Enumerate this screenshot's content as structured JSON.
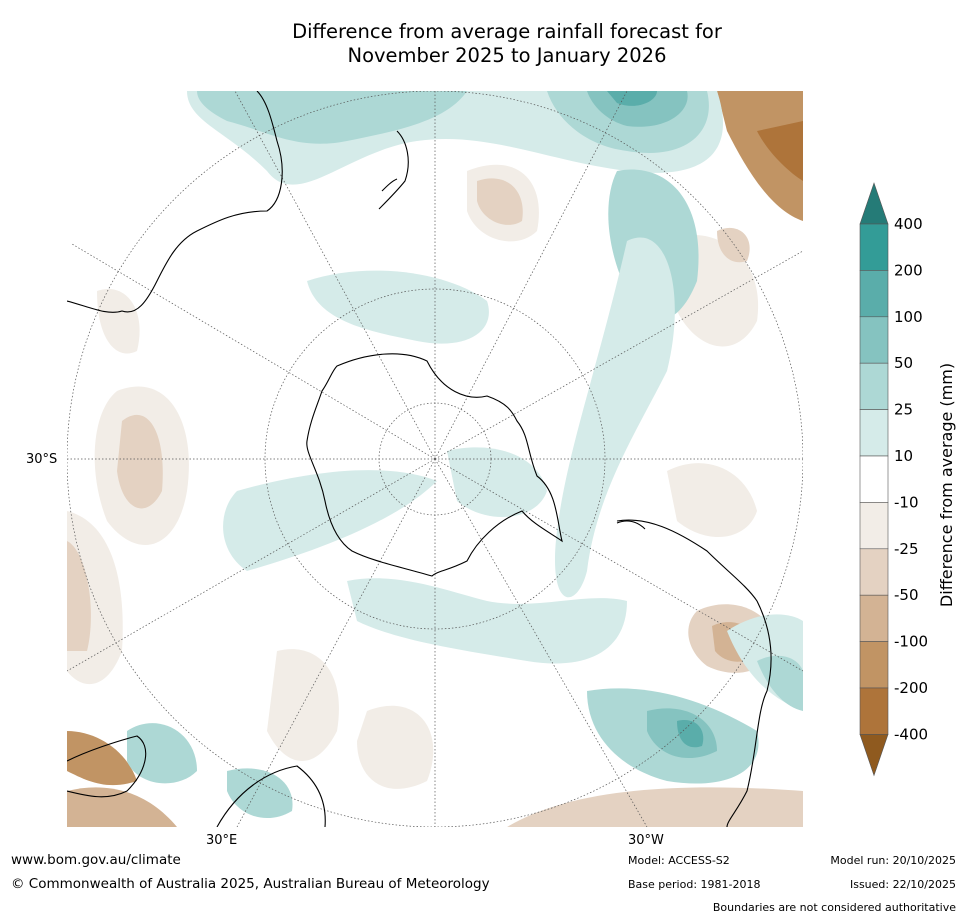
{
  "title": {
    "line1": "Difference from average rainfall forecast for",
    "line2": "November 2025 to January 2026"
  },
  "map": {
    "lat_label": "30°S",
    "lon_label_left": "30°E",
    "lon_label_right": "30°W"
  },
  "colorbar": {
    "label": "Difference from average (mm)",
    "ticks": [
      "400",
      "200",
      "100",
      "50",
      "25",
      "10",
      "-10",
      "-25",
      "-50",
      "-100",
      "-200",
      "-400"
    ],
    "colors": {
      "gt400": "#257b77",
      "200_400": "#339c97",
      "100_200": "#5aadaa",
      "50_100": "#85c3c0",
      "25_50": "#add8d5",
      "10_25": "#d5ebe9",
      "-10_10": "#ffffff",
      "-25_-10": "#f2ede7",
      "-50_-25": "#e4d2c2",
      "-100_-50": "#d3b394",
      "-200_-100": "#c19464",
      "-400_-200": "#ae743a",
      "lt-400": "#8f5a1f"
    }
  },
  "footer": {
    "url": "www.bom.gov.au/climate",
    "copyright": "© Commonwealth of Australia 2025, Australian Bureau of Meteorology",
    "model": "Model: ACCESS-S2",
    "base_period": "Base period: 1981-2018",
    "model_run": "Model run: 20/10/2025",
    "issued": "Issued: 22/10/2025",
    "disclaimer": "Boundaries are not considered authoritative"
  }
}
